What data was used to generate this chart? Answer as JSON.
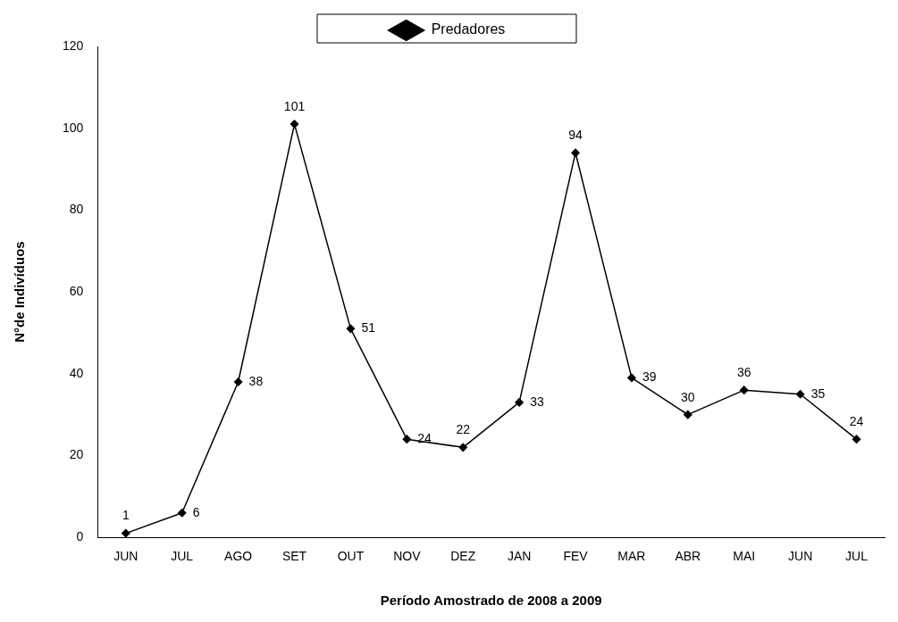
{
  "chart_data": {
    "type": "line",
    "xlabel": "Período Amostrado de 2008 a 2009",
    "ylabel": "N°de Indivíduos",
    "categories": [
      "JUN",
      "JUL",
      "AGO",
      "SET",
      "OUT",
      "NOV",
      "DEZ",
      "JAN",
      "FEV",
      "MAR",
      "ABR",
      "MAI",
      "JUN",
      "JUL"
    ],
    "series": [
      {
        "name": "Predadores",
        "color": "#000000",
        "values": [
          1,
          6,
          38,
          101,
          51,
          24,
          22,
          33,
          94,
          39,
          30,
          36,
          35,
          24
        ]
      }
    ],
    "ylim": [
      0,
      120
    ],
    "yticks": [
      0,
      20,
      40,
      60,
      80,
      100,
      120
    ],
    "grid": false,
    "legend": "top",
    "marker": "diamond",
    "line_style": "solid",
    "data_labels": true
  }
}
